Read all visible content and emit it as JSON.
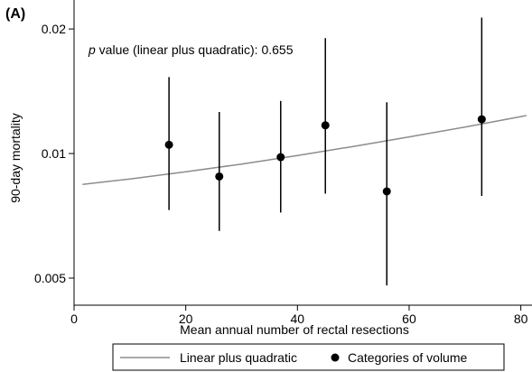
{
  "chart_data": {
    "type": "scatter",
    "panel_label": "(A)",
    "annotation": {
      "italic": "p",
      "text": " value (linear plus quadratic): 0.655"
    },
    "xlabel": "Mean annual number of rectal resections",
    "ylabel": "90-day mortality",
    "xlim": [
      0,
      82
    ],
    "ylim": [
      0.0043,
      0.0235
    ],
    "y_scale": "log",
    "x_ticks": [
      {
        "value": 0,
        "label": "0"
      },
      {
        "value": 20,
        "label": "20"
      },
      {
        "value": 40,
        "label": "40"
      },
      {
        "value": 60,
        "label": "60"
      },
      {
        "value": 80,
        "label": "80"
      }
    ],
    "y_ticks": [
      {
        "value": 0.005,
        "label": "0.005"
      },
      {
        "value": 0.01,
        "label": "0.01"
      },
      {
        "value": 0.02,
        "label": "0.02"
      }
    ],
    "grid": false,
    "legend_position": "bottom",
    "series": [
      {
        "name": "Linear plus quadratic",
        "kind": "line",
        "color": "#8c8c8c",
        "x": [
          1.5,
          10,
          20,
          30,
          40,
          50,
          60,
          70,
          81
        ],
        "y": [
          0.00842,
          0.00868,
          0.00903,
          0.00943,
          0.00989,
          0.0104,
          0.01097,
          0.01159,
          0.01235
        ]
      },
      {
        "name": "Categories of volume",
        "kind": "point-errorbar",
        "color": "#000000",
        "x": [
          17,
          26,
          37,
          45,
          56,
          73
        ],
        "y": [
          0.0105,
          0.0088,
          0.0098,
          0.0117,
          0.0081,
          0.0121
        ],
        "ci_lower": [
          0.0073,
          0.0065,
          0.0072,
          0.008,
          0.0048,
          0.0079
        ],
        "ci_upper": [
          0.0153,
          0.0126,
          0.0134,
          0.019,
          0.0133,
          0.0213
        ]
      }
    ]
  }
}
